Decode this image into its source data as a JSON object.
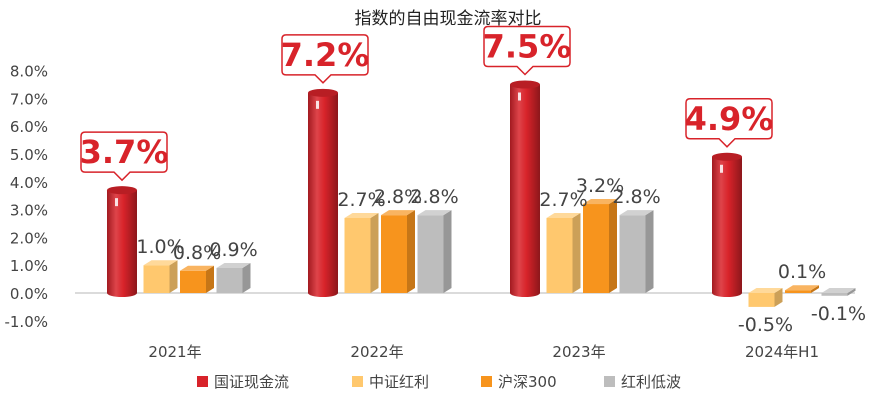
{
  "chart_data": {
    "type": "bar",
    "title": "指数的自由现金流率对比",
    "categories": [
      "2021年",
      "2022年",
      "2023年",
      "2024年H1"
    ],
    "y_tick_labels": [
      "8.0%",
      "7.0%",
      "6.0%",
      "5.0%",
      "4.0%",
      "3.0%",
      "2.0%",
      "1.0%",
      "0.0%",
      "-1.0%"
    ],
    "ylim": [
      -1.0,
      8.0
    ],
    "grid": false,
    "legend_position": "bottom",
    "series": [
      {
        "name": "国证现金流",
        "color": "#d8232a",
        "values": [
          3.7,
          7.2,
          7.5,
          4.9
        ],
        "labels": [
          "3.7%",
          "7.2%",
          "7.5%",
          "4.9%"
        ],
        "callout": true
      },
      {
        "name": "中证红利",
        "color": "#ffc86e",
        "values": [
          1.0,
          2.7,
          2.7,
          -0.5
        ],
        "labels": [
          "1.0%",
          "2.7%",
          "2.7%",
          "-0.5%"
        ]
      },
      {
        "name": "沪深300",
        "color": "#f7941d",
        "values": [
          0.8,
          2.8,
          3.2,
          0.1
        ],
        "labels": [
          "0.8%",
          "2.8%",
          "3.2%",
          "0.1%"
        ]
      },
      {
        "name": "红利低波",
        "color": "#bdbdbd",
        "values": [
          0.9,
          2.8,
          2.8,
          -0.1
        ],
        "labels": [
          "0.9%",
          "2.8%",
          "2.8%",
          "-0.1%"
        ]
      }
    ]
  }
}
